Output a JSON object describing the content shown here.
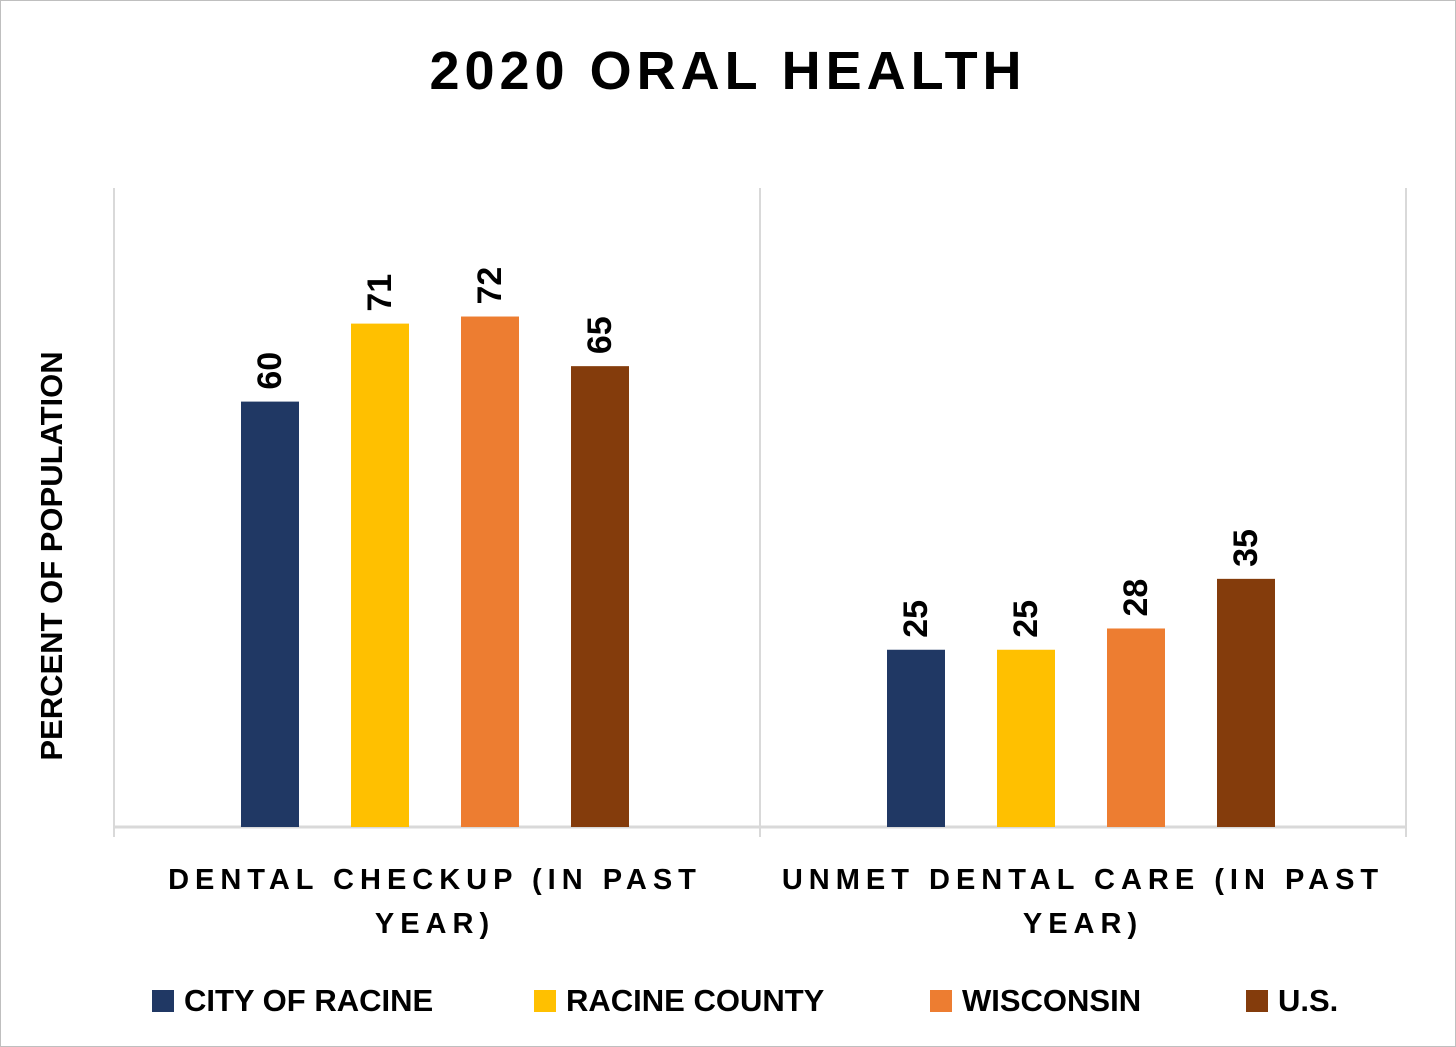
{
  "chart_data": {
    "type": "bar",
    "title": "2020 ORAL HEALTH",
    "xlabel": "",
    "ylabel": "PERCENT OF POPULATION",
    "ylim": [
      0,
      85
    ],
    "grid": false,
    "legend_position": "bottom",
    "categories": [
      "DENTAL CHECKUP (IN PAST YEAR)",
      "UNMET DENTAL CARE (IN PAST YEAR)"
    ],
    "series": [
      {
        "name": "CITY OF RACINE",
        "color": "#203864",
        "values": [
          60,
          25
        ]
      },
      {
        "name": "RACINE COUNTY",
        "color": "#FFC000",
        "values": [
          71,
          25
        ]
      },
      {
        "name": "WISCONSIN",
        "color": "#ED7D31",
        "values": [
          72,
          28
        ]
      },
      {
        "name": "U.S.",
        "color": "#843C0C",
        "values": [
          65,
          35
        ]
      }
    ]
  }
}
